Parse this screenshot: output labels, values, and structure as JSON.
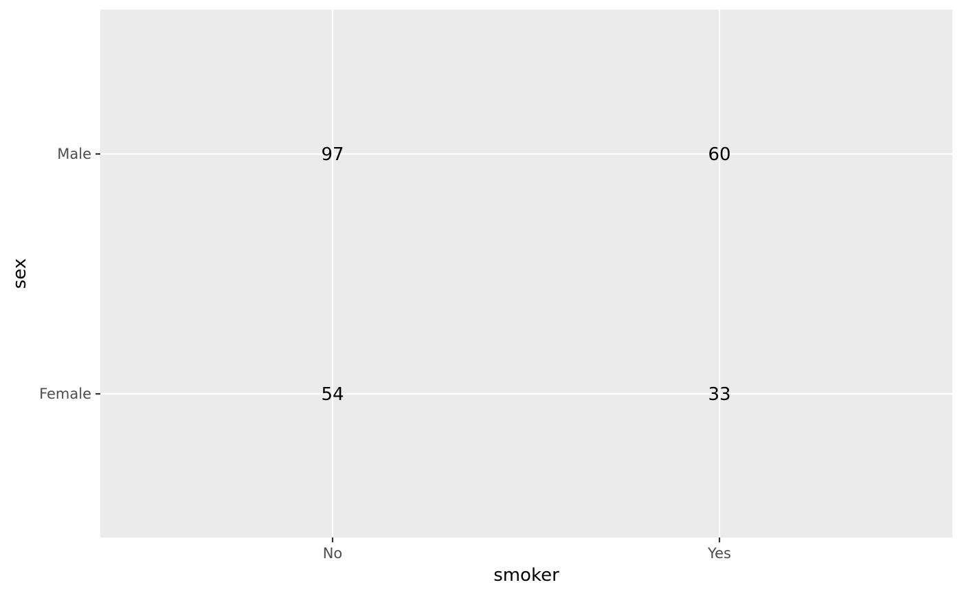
{
  "chart_data": {
    "type": "table",
    "title": "",
    "xlabel": "smoker",
    "ylabel": "sex",
    "x_categories": [
      "No",
      "Yes"
    ],
    "y_categories": [
      "Female",
      "Male"
    ],
    "cells": [
      {
        "x": "No",
        "y": "Male",
        "value": 97
      },
      {
        "x": "Yes",
        "y": "Male",
        "value": 60
      },
      {
        "x": "No",
        "y": "Female",
        "value": 54
      },
      {
        "x": "Yes",
        "y": "Female",
        "value": 33
      }
    ],
    "grid": true,
    "legend": "none",
    "colors": {
      "panel_background": "#EBEBEB",
      "grid_line": "#FFFFFF",
      "tick_label": "#4D4D4D",
      "tick_mark": "#333333",
      "axis_title": "#000000",
      "cell_text": "#000000"
    }
  }
}
